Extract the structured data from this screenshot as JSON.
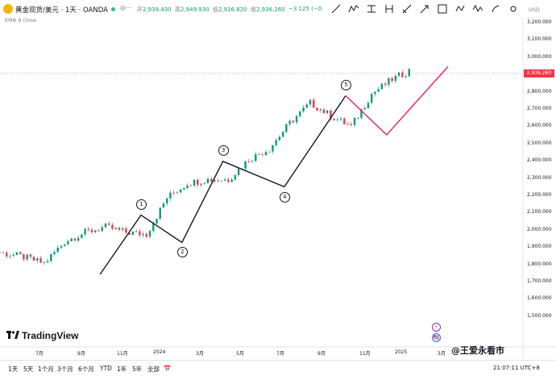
{
  "header": {
    "title": "黄金现货/美元 · 1天 · OANDA",
    "ohlc": [
      {
        "label": "开",
        "value": "2,939.430"
      },
      {
        "label": "高",
        "value": "2,949.930"
      },
      {
        "label": "低",
        "value": "2,916.820"
      },
      {
        "label": "收",
        "value": "2,936.260"
      },
      {
        "label": "",
        "value": "−3.125 (−0."
      }
    ],
    "indicator": "EMA 9 close",
    "toolbar_icons": [
      "trend-line-icon",
      "zigzag-icon",
      "price-range-icon",
      "date-range-icon",
      "measure-icon",
      "arrow-icon",
      "square-icon",
      "pattern-icon",
      "wave-icon",
      "brush-icon",
      "gear-icon"
    ]
  },
  "price_axis": {
    "currency": "USD",
    "current_price": "2,936.260",
    "ticks": [
      "3,200.000",
      "3,100.000",
      "3,000.000",
      "2,900.000",
      "2,800.000",
      "2,700.000",
      "2,600.000",
      "2,500.000",
      "2,400.000",
      "2,300.000",
      "2,200.000",
      "2,100.000",
      "2,000.000",
      "1,900.000",
      "1,800.000",
      "1,700.000",
      "1,600.000",
      "1,500.000"
    ]
  },
  "time_axis": {
    "ticks": [
      "7月",
      "9月",
      "11月",
      "2024",
      "3月",
      "5月",
      "7月",
      "9月",
      "11月",
      "2025",
      "3月"
    ]
  },
  "waves": {
    "labels": [
      "①",
      "②",
      "③",
      "④",
      "⑤"
    ]
  },
  "events": [
    {
      "symbol": "⚡",
      "color": "#9c27b0"
    },
    {
      "symbol": "🇺🇸",
      "color": "#2962ff"
    }
  ],
  "timeframes": [
    "1天",
    "5天",
    "1个月",
    "3个月",
    "6个月",
    "YTD",
    "1年",
    "5年",
    "全部"
  ],
  "clock": "21:07:11 UTC+8",
  "branding": {
    "logo_text": "TradingView",
    "watermark": "@王爱永看市"
  },
  "colors": {
    "up": "#089981",
    "down": "#f23645",
    "wave_line": "#131722",
    "corrective_line": "#e91e63",
    "price_badge": "#f23645"
  },
  "chart_data": {
    "type": "candlestick",
    "ylim": [
      1500,
      3200
    ],
    "x": [
      "2023-06",
      "2023-07",
      "2023-08",
      "2023-09",
      "2023-10",
      "2023-11",
      "2023-12",
      "2024-01",
      "2024-02",
      "2024-03",
      "2024-04",
      "2024-05",
      "2024-06",
      "2024-07",
      "2024-08",
      "2024-09",
      "2024-10",
      "2024-11",
      "2024-12",
      "2025-01",
      "2025-02",
      "2025-03"
    ],
    "close": [
      1965,
      1925,
      1905,
      1870,
      1990,
      2040,
      2070,
      2040,
      2030,
      2230,
      2310,
      2330,
      2330,
      2440,
      2500,
      2640,
      2750,
      2680,
      2620,
      2800,
      2880,
      2936
    ],
    "wave_points": [
      {
        "label": "①",
        "date": "2023-12",
        "price": 2135
      },
      {
        "label": "②",
        "date": "2024-02",
        "price": 1985
      },
      {
        "label": "③",
        "date": "2024-04",
        "price": 2430
      },
      {
        "label": "④",
        "date": "2024-07",
        "price": 2290
      },
      {
        "label": "⑤",
        "date": "2024-10",
        "price": 2790
      }
    ],
    "wave_start": {
      "date": "2023-10",
      "price": 1810
    },
    "corrective": [
      {
        "date": "2024-10",
        "price": 2790
      },
      {
        "date": "2024-12",
        "price": 2575
      },
      {
        "date": "2025-03",
        "price": 2950
      }
    ]
  }
}
